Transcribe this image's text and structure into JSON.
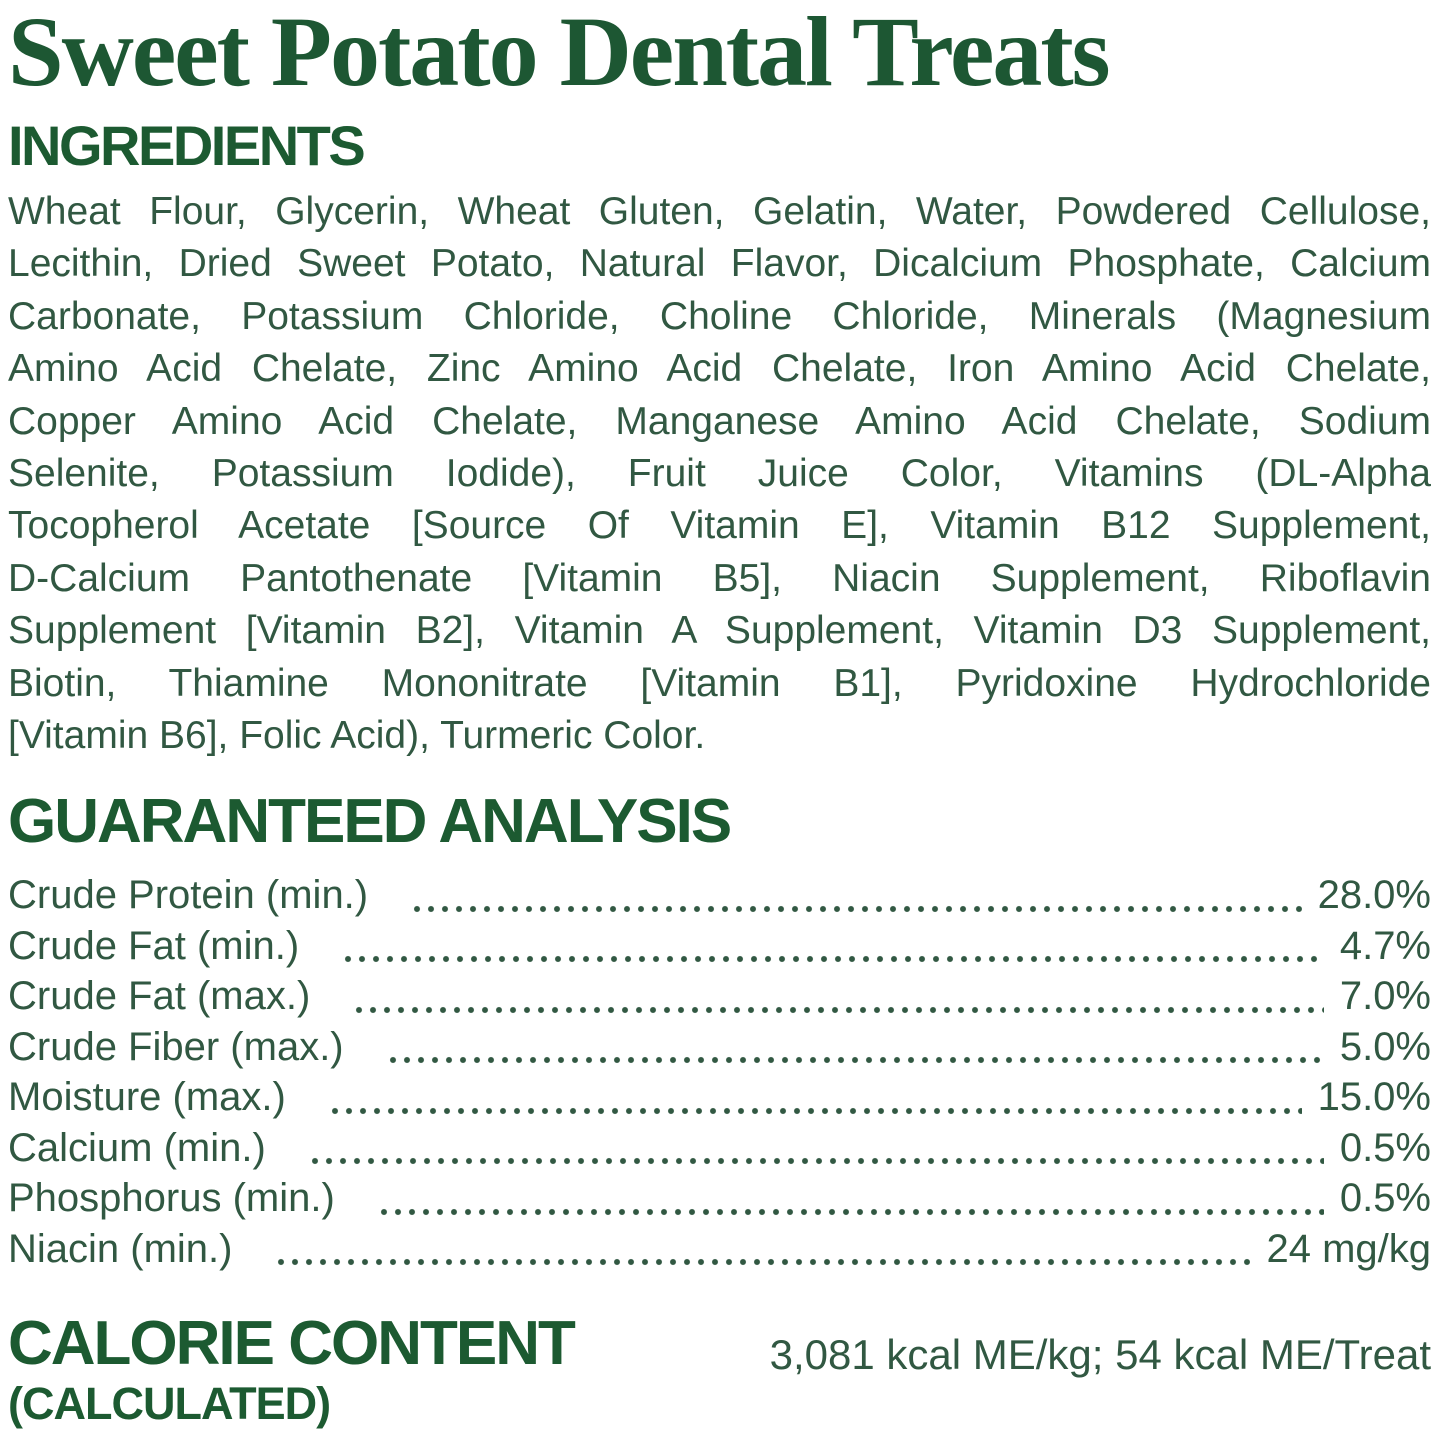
{
  "colors": {
    "title_green": "#1d5733",
    "heading_green": "#1c5a31",
    "body_green": "#315842",
    "background": "#ffffff"
  },
  "title": "Sweet Potato Dental Treats",
  "ingredients": {
    "heading": "INGREDIENTS",
    "lines": [
      "Wheat Flour, Glycerin, Wheat Gluten, Gelatin, Water, Powdered Cellulose,",
      "Lecithin, Dried Sweet Potato, Natural Flavor, Dicalcium Phosphate, Calcium",
      "Carbonate, Potassium Chloride, Choline Chloride, Minerals (Magnesium",
      "Amino Acid Chelate, Zinc Amino Acid Chelate, Iron Amino Acid Chelate,",
      "Copper Amino Acid Chelate, Manganese Amino Acid Chelate, Sodium",
      "Selenite, Potassium Iodide), Fruit Juice Color, Vitamins (DL-Alpha",
      "Tocopherol Acetate [Source Of Vitamin E], Vitamin B12 Supplement,",
      "D-Calcium Pantothenate [Vitamin B5], Niacin Supplement, Riboflavin",
      "Supplement [Vitamin B2], Vitamin A Supplement, Vitamin D3 Supplement,",
      "Biotin, Thiamine Mononitrate [Vitamin B1], Pyridoxine Hydrochloride",
      "[Vitamin B6], Folic Acid), Turmeric Color."
    ]
  },
  "guaranteed_analysis": {
    "heading": "GUARANTEED ANALYSIS",
    "rows": [
      {
        "label": "Crude Protein (min.)",
        "value": "28.0%"
      },
      {
        "label": "Crude Fat (min.)",
        "value": "4.7%"
      },
      {
        "label": "Crude Fat (max.)",
        "value": "7.0%"
      },
      {
        "label": "Crude Fiber (max.)",
        "value": "5.0%"
      },
      {
        "label": "Moisture (max.)",
        "value": "15.0%"
      },
      {
        "label": "Calcium (min.)",
        "value": "0.5%"
      },
      {
        "label": "Phosphorus (min.)",
        "value": "0.5%"
      },
      {
        "label": "Niacin (min.)",
        "value": "24 mg/kg"
      }
    ]
  },
  "calorie_content": {
    "heading": "CALORIE CONTENT",
    "subheading": "(CALCULATED)",
    "value": "3,081 kcal ME/kg; 54 kcal ME/Treat"
  }
}
